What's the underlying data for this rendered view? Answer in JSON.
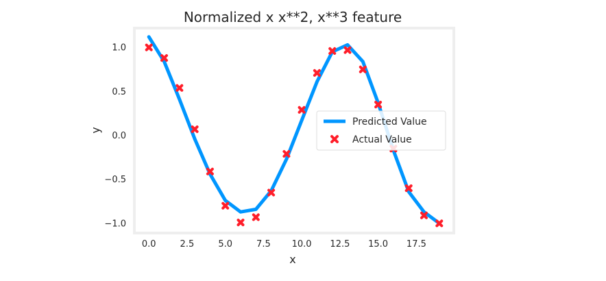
{
  "chart_data": {
    "type": "line",
    "title": "Normalized x x**2, x**3 feature",
    "xlabel": "x",
    "ylabel": "y",
    "xlim": [
      -0.95,
      19.95
    ],
    "ylim": [
      -1.11,
      1.22
    ],
    "xticks": [
      0.0,
      2.5,
      5.0,
      7.5,
      10.0,
      12.5,
      15.0,
      17.5
    ],
    "xtick_labels": [
      "0.0",
      "2.5",
      "5.0",
      "7.5",
      "10.0",
      "12.5",
      "15.0",
      "17.5"
    ],
    "yticks": [
      1.0,
      0.5,
      0.0,
      -0.5,
      -1.0
    ],
    "ytick_labels": [
      "1.0",
      "0.5",
      "0.0",
      "−0.5",
      "−1.0"
    ],
    "grid": false,
    "legend_position": "center-right",
    "series": [
      {
        "name": "Predicted Value",
        "kind": "line",
        "color": "#0096ff",
        "x": [
          0,
          1,
          2,
          3,
          4,
          5,
          6,
          7,
          8,
          9,
          10,
          11,
          12,
          13,
          14,
          15,
          16,
          17,
          18,
          19
        ],
        "y": [
          1.12,
          0.84,
          0.41,
          -0.04,
          -0.44,
          -0.74,
          -0.87,
          -0.84,
          -0.63,
          -0.27,
          0.17,
          0.61,
          0.95,
          1.03,
          0.84,
          0.37,
          -0.17,
          -0.64,
          -0.87,
          -1.0
        ]
      },
      {
        "name": "Actual Value",
        "kind": "scatter",
        "color": "#ff1e2a",
        "marker": "x",
        "x": [
          0,
          1,
          2,
          3,
          4,
          5,
          6,
          7,
          8,
          9,
          10,
          11,
          12,
          13,
          14,
          15,
          16,
          17,
          18,
          19
        ],
        "y": [
          1.0,
          0.88,
          0.54,
          0.07,
          -0.41,
          -0.8,
          -0.99,
          -0.93,
          -0.65,
          -0.21,
          0.29,
          0.71,
          0.96,
          0.97,
          0.75,
          0.35,
          -0.15,
          -0.6,
          -0.91,
          -1.0
        ]
      }
    ]
  }
}
